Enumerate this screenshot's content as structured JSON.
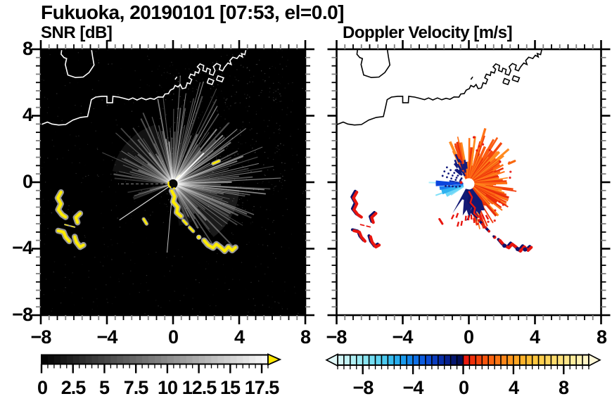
{
  "title": "Fukuoka, 20190101 [07:53, el=0.0]",
  "panels": {
    "left": {
      "title": "SNR [dB]"
    },
    "right": {
      "title": "Doppler Velocity [m/s]"
    }
  },
  "axes": {
    "x_ticks": [
      "−8",
      "−4",
      "0",
      "4",
      "8"
    ],
    "y_ticks": [
      "8",
      "4",
      "0",
      "−4",
      "−8"
    ]
  },
  "colorbars": {
    "snr": {
      "labels": [
        "0",
        "2.5",
        "5",
        "7.5",
        "10",
        "12.5",
        "15",
        "17.5"
      ],
      "min": 0,
      "max": 18,
      "cell_step": 0.5,
      "colormap": "grayscale black to white",
      "arrow_color": "#ffe800"
    },
    "doppler": {
      "labels": [
        "−8",
        "−4",
        "0",
        "4",
        "8"
      ],
      "min": -10,
      "max": 10,
      "cell_step": 0.5,
      "stops": [
        [
          -10.25,
          "#e2f8f8"
        ],
        [
          -9,
          "#baf1f4"
        ],
        [
          -7.5,
          "#7fe2f2"
        ],
        [
          -6,
          "#3fc4ef"
        ],
        [
          -5,
          "#1da4ee"
        ],
        [
          -4,
          "#0f7ae9"
        ],
        [
          -3,
          "#0b52dc"
        ],
        [
          -2,
          "#0934b4"
        ],
        [
          -1.2,
          "#071f8a"
        ],
        [
          -0.5,
          "#041263"
        ],
        [
          -0.02,
          "#030c4a"
        ],
        [
          0.02,
          "#e80f0f"
        ],
        [
          1,
          "#f23b0a"
        ],
        [
          2,
          "#fa5c0e"
        ],
        [
          3,
          "#fe7d15"
        ],
        [
          4,
          "#ffa01f"
        ],
        [
          5.5,
          "#ffc337"
        ],
        [
          7,
          "#ffd964"
        ],
        [
          8.5,
          "#ffe992"
        ],
        [
          9.5,
          "#fff3bb"
        ],
        [
          10.25,
          "#fff8d8"
        ]
      ]
    }
  },
  "chart_data": [
    {
      "type": "heatmap",
      "panel": "left",
      "title": "SNR [dB]",
      "xlim": [
        -8,
        8
      ],
      "ylim": [
        -8,
        8
      ],
      "x_ticks": [
        -8,
        -4,
        0,
        4,
        8
      ],
      "y_ticks": [
        -8,
        -4,
        0,
        4,
        8
      ],
      "minor_tick_step": 0.5,
      "background_value_color": "black",
      "colorbar": {
        "orientation": "horizontal",
        "min": 0,
        "max": 18,
        "cell_step": 0.5,
        "tick_values": [
          0,
          2.5,
          5,
          7.5,
          10,
          12.5,
          15,
          17.5
        ],
        "colormap": "black-to-white grayscale",
        "overflow_arrow_color": "#ffe800"
      },
      "features": [
        {
          "name": "coastline",
          "color": "white",
          "region": "Hakata Bay / Fukuoka harbor with piers, peninsula at top-left"
        },
        {
          "name": "radar-origin",
          "x": 0,
          "y": -0.1,
          "appearance": "dark disk with yellow rim fragments"
        },
        {
          "name": "beam-fan",
          "appearance": "gray radial beams brightest toward N-E-SE, radius ~5 units, speckle noise"
        },
        {
          "name": "blocked-sectors",
          "azimuth_ranges_deg": [
            [
              175,
              198
            ],
            [
              200,
              246
            ],
            [
              262,
              279
            ]
          ]
        },
        {
          "name": "ship-track",
          "color": "yellow",
          "path_xy": [
            [
              0,
              -0.5
            ],
            [
              0.3,
              -1.5
            ],
            [
              0.5,
              -2.1
            ],
            [
              1.2,
              -3.0
            ],
            [
              2.1,
              -3.8
            ],
            [
              3.0,
              -4.0
            ],
            [
              3.8,
              -4.0
            ]
          ]
        },
        {
          "name": "west-clutter",
          "color": "yellow",
          "clusters_xy": [
            [
              -6.8,
              -1.3
            ],
            [
              -5.8,
              -2.2
            ],
            [
              -6.2,
              -2.6
            ],
            [
              -6.6,
              -3.2
            ],
            [
              -5.7,
              -3.6
            ]
          ]
        },
        {
          "name": "echo-dash",
          "color": "yellow",
          "xy": [
            2.6,
            1.2
          ]
        }
      ]
    },
    {
      "type": "heatmap",
      "panel": "right",
      "title": "Doppler Velocity [m/s]",
      "xlim": [
        -8,
        8
      ],
      "ylim": [
        -8,
        8
      ],
      "x_ticks": [
        -8,
        -4,
        0,
        4,
        8
      ],
      "y_ticks": [
        -8,
        -4,
        0,
        4,
        8
      ],
      "minor_tick_step": 0.5,
      "background_value_color": "white",
      "colorbar": {
        "orientation": "horizontal",
        "min": -10,
        "max": 10,
        "cell_step": 0.5,
        "tick_values": [
          -8,
          -4,
          0,
          4,
          8
        ],
        "colormap": "diverging cyan-blue-navy | red-orange-yellow-cream",
        "underflow_arrow": true,
        "overflow_arrow": true
      },
      "features": [
        {
          "name": "coastline",
          "color": "black"
        },
        {
          "name": "radar-origin",
          "x": 0,
          "y": -0.1,
          "appearance": "white disk"
        },
        {
          "name": "positive-velocity-fan",
          "colors": [
            "#e92f0b",
            "#ff8a1f"
          ],
          "azimuth": "N clockwise through E to S",
          "radius_units": 2
        },
        {
          "name": "negative-velocity-fan",
          "colors": [
            "#0b45dd",
            "#6cd6f7"
          ],
          "azimuth": "W to WSW",
          "radius_units": 2
        },
        {
          "name": "navy-patches",
          "color": "#131a76",
          "location": "south of origin and NW rim of orange fan"
        },
        {
          "name": "ship-track",
          "colors": [
            "#e8150e",
            "#10136b"
          ],
          "path_xy": [
            [
              0,
              -0.5
            ],
            [
              0.5,
              -2.1
            ],
            [
              1.2,
              -3.0
            ],
            [
              2.1,
              -3.8
            ],
            [
              3.8,
              -4.0
            ]
          ]
        },
        {
          "name": "west-clutter",
          "colors": [
            "#e8150e",
            "#10136b"
          ],
          "clusters_xy": [
            [
              -6.8,
              -1.3
            ],
            [
              -5.8,
              -2.2
            ],
            [
              -6.6,
              -3.2
            ],
            [
              -5.7,
              -3.6
            ]
          ]
        },
        {
          "name": "echo-dash",
          "color": "#f8680f",
          "xy": [
            2.6,
            1.2
          ]
        }
      ]
    }
  ]
}
